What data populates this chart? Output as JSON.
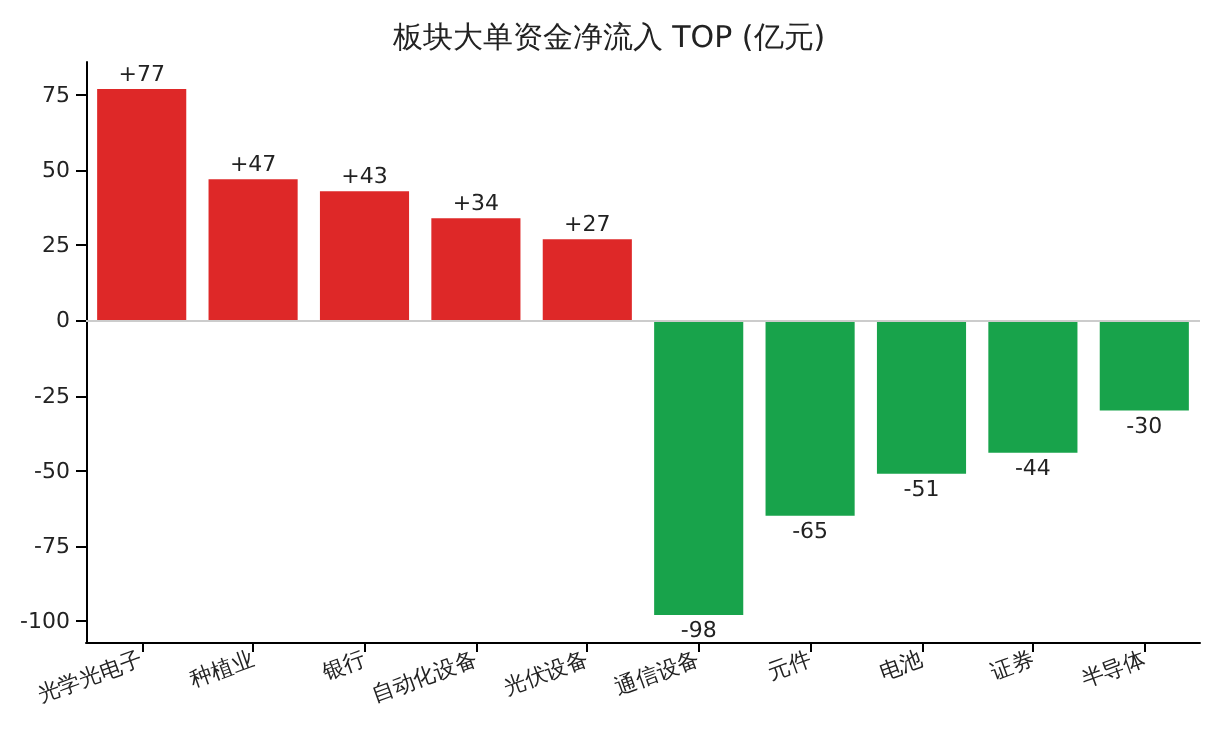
{
  "chart_data": {
    "type": "bar",
    "title": "板块大单资金净流入 TOP (亿元)",
    "categories": [
      "光学光电子",
      "种植业",
      "银行",
      "自动化设备",
      "光伏设备",
      "通信设备",
      "元件",
      "电池",
      "证券",
      "半导体"
    ],
    "values": [
      77,
      47,
      43,
      34,
      27,
      -98,
      -65,
      -51,
      -44,
      -30
    ],
    "value_labels": [
      "+77",
      "+47",
      "+43",
      "+34",
      "+27",
      "-98",
      "-65",
      "-51",
      "-44",
      "-30"
    ],
    "colors": [
      "#de2828",
      "#de2828",
      "#de2828",
      "#de2828",
      "#de2828",
      "#18a34b",
      "#18a34b",
      "#18a34b",
      "#18a34b",
      "#18a34b"
    ],
    "ylim": [
      -107,
      86
    ],
    "yticks": [
      -100,
      -75,
      -50,
      -25,
      0,
      25,
      50,
      75
    ],
    "ref_lines": [
      {
        "axis": "y",
        "value": 0,
        "color": "#cccccc"
      }
    ],
    "grid": false
  }
}
